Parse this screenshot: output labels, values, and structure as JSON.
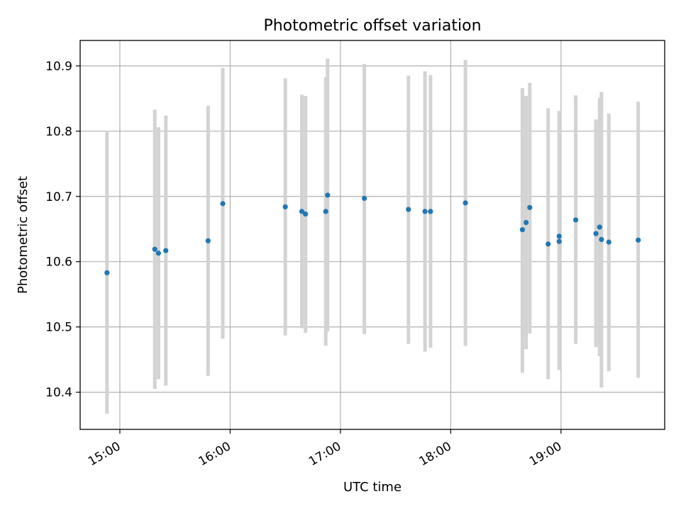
{
  "chart_data": {
    "type": "scatter",
    "title": "Photometric offset variation",
    "xlabel": "UTC time",
    "ylabel": "Photometric offset",
    "x_tick_labels": [
      "15:00",
      "16:00",
      "17:00",
      "18:00",
      "19:00"
    ],
    "x_ticks_hours": [
      15,
      16,
      17,
      18,
      19
    ],
    "y_tick_labels": [
      "10.4",
      "10.5",
      "10.6",
      "10.7",
      "10.8",
      "10.9"
    ],
    "y_ticks": [
      10.4,
      10.5,
      10.6,
      10.7,
      10.8,
      10.9
    ],
    "xlim_hours": [
      14.64,
      19.94
    ],
    "ylim": [
      10.343,
      10.939
    ],
    "grid": true,
    "colors": {
      "point": "#1f77b4",
      "errorbar": "#d3d3d3",
      "grid": "#b0b0b0"
    },
    "points": [
      {
        "t": "14:53",
        "y": 10.583,
        "lo": 10.367,
        "hi": 10.8
      },
      {
        "t": "15:19",
        "y": 10.619,
        "lo": 10.405,
        "hi": 10.833
      },
      {
        "t": "15:21",
        "y": 10.613,
        "lo": 10.42,
        "hi": 10.806
      },
      {
        "t": "15:25",
        "y": 10.617,
        "lo": 10.41,
        "hi": 10.824
      },
      {
        "t": "15:48",
        "y": 10.632,
        "lo": 10.425,
        "hi": 10.839
      },
      {
        "t": "15:56",
        "y": 10.689,
        "lo": 10.482,
        "hi": 10.897
      },
      {
        "t": "16:30",
        "y": 10.684,
        "lo": 10.487,
        "hi": 10.881
      },
      {
        "t": "16:39",
        "y": 10.677,
        "lo": 10.498,
        "hi": 10.856
      },
      {
        "t": "16:41",
        "y": 10.673,
        "lo": 10.491,
        "hi": 10.854
      },
      {
        "t": "16:52",
        "y": 10.677,
        "lo": 10.471,
        "hi": 10.883
      },
      {
        "t": "16:53",
        "y": 10.702,
        "lo": 10.493,
        "hi": 10.911
      },
      {
        "t": "17:13",
        "y": 10.697,
        "lo": 10.489,
        "hi": 10.903
      },
      {
        "t": "17:37",
        "y": 10.68,
        "lo": 10.474,
        "hi": 10.885
      },
      {
        "t": "17:46",
        "y": 10.677,
        "lo": 10.462,
        "hi": 10.892
      },
      {
        "t": "17:49",
        "y": 10.677,
        "lo": 10.468,
        "hi": 10.886
      },
      {
        "t": "18:08",
        "y": 10.69,
        "lo": 10.471,
        "hi": 10.909
      },
      {
        "t": "18:39",
        "y": 10.649,
        "lo": 10.43,
        "hi": 10.866
      },
      {
        "t": "18:41",
        "y": 10.66,
        "lo": 10.466,
        "hi": 10.854
      },
      {
        "t": "18:43",
        "y": 10.683,
        "lo": 10.49,
        "hi": 10.874
      },
      {
        "t": "18:53",
        "y": 10.627,
        "lo": 10.42,
        "hi": 10.835
      },
      {
        "t": "18:59",
        "y": 10.631,
        "lo": 10.434,
        "hi": 10.83
      },
      {
        "t": "18:59",
        "y": 10.639,
        "lo": 10.436,
        "hi": 10.831
      },
      {
        "t": "19:08",
        "y": 10.664,
        "lo": 10.474,
        "hi": 10.855
      },
      {
        "t": "19:19",
        "y": 10.643,
        "lo": 10.469,
        "hi": 10.818
      },
      {
        "t": "19:21",
        "y": 10.653,
        "lo": 10.455,
        "hi": 10.851
      },
      {
        "t": "19:22",
        "y": 10.634,
        "lo": 10.407,
        "hi": 10.86
      },
      {
        "t": "19:26",
        "y": 10.63,
        "lo": 10.432,
        "hi": 10.827
      },
      {
        "t": "19:42",
        "y": 10.633,
        "lo": 10.422,
        "hi": 10.845
      }
    ]
  }
}
